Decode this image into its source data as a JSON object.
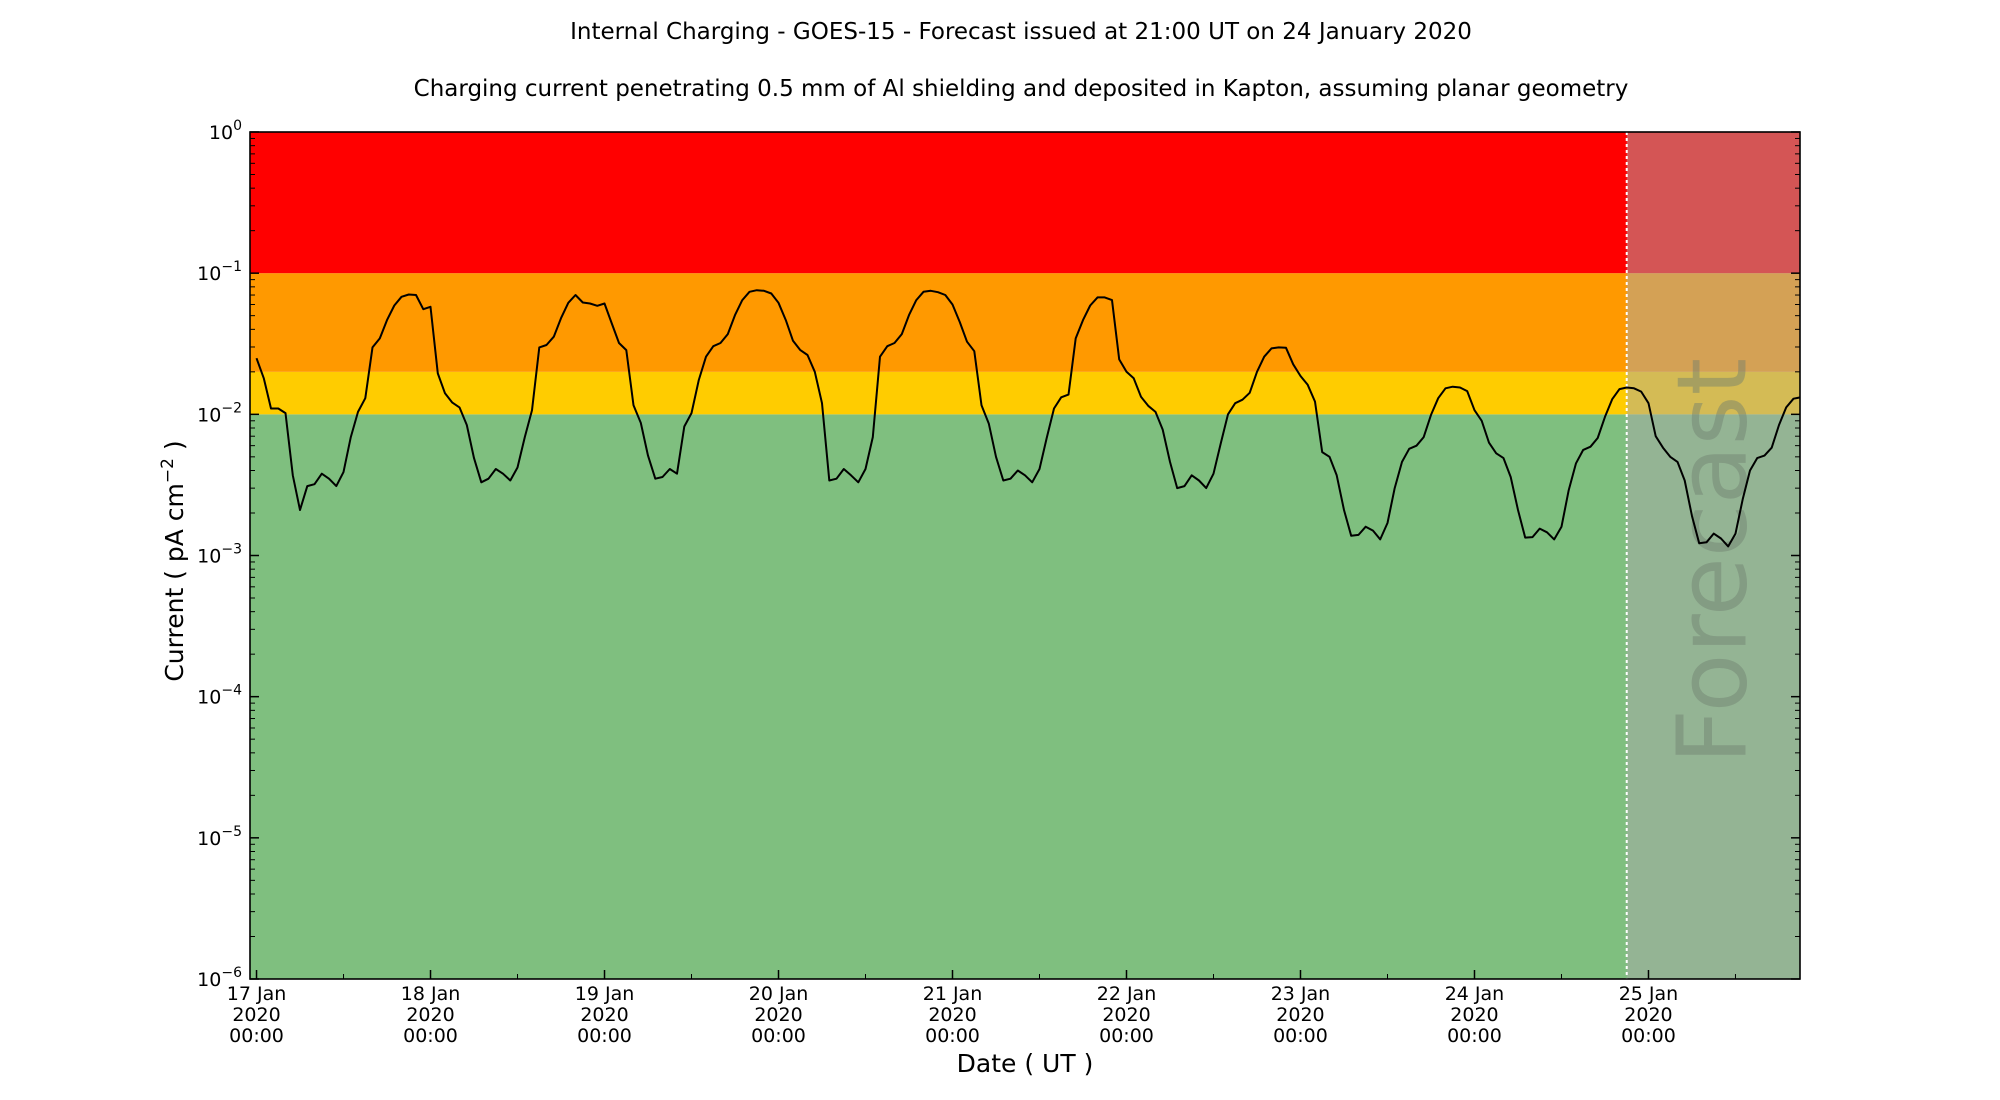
{
  "chart_data": {
    "type": "line",
    "title": "Internal Charging - GOES-15 - Forecast issued at 21:00 UT on 24 January 2020",
    "subtitle": "Charging current penetrating 0.5 mm of Al shielding and deposited in Kapton, assuming planar geometry",
    "xlabel": "Date ( UT )",
    "ylabel": "Current ( pA cm",
    "ylabel_exp": "−2",
    "ylabel_end": " )",
    "yscale": "log",
    "ylim": [
      1e-06,
      1
    ],
    "xlim_hours": [
      -0.9,
      212.9
    ],
    "x_start": "17 Jan 2020 00:00",
    "x_step_hours": 1,
    "forecast_start_hour": 189,
    "forecast_label": "Forecast",
    "grid": false,
    "bands": [
      {
        "name": "green",
        "from": 1e-06,
        "to": 0.01,
        "color": "#7fbf7f"
      },
      {
        "name": "yellow",
        "from": 0.01,
        "to": 0.02,
        "color": "#ffcc00"
      },
      {
        "name": "orange",
        "from": 0.02,
        "to": 0.1,
        "color": "#ff9900"
      },
      {
        "name": "red",
        "from": 0.1,
        "to": 1,
        "color": "#ff0000"
      }
    ],
    "y_ticks": [
      {
        "value": 1,
        "base": "10",
        "exp": "0"
      },
      {
        "value": 0.1,
        "base": "10",
        "exp": "−1"
      },
      {
        "value": 0.01,
        "base": "10",
        "exp": "−2"
      },
      {
        "value": 0.001,
        "base": "10",
        "exp": "−3"
      },
      {
        "value": 0.0001,
        "base": "10",
        "exp": "−4"
      },
      {
        "value": 1e-05,
        "base": "10",
        "exp": "−5"
      },
      {
        "value": 1e-06,
        "base": "10",
        "exp": "−6"
      }
    ],
    "x_ticks": [
      {
        "hour": 0,
        "lines": [
          "17 Jan",
          "2020",
          "00:00"
        ]
      },
      {
        "hour": 24,
        "lines": [
          "18 Jan",
          "2020",
          "00:00"
        ]
      },
      {
        "hour": 48,
        "lines": [
          "19 Jan",
          "2020",
          "00:00"
        ]
      },
      {
        "hour": 72,
        "lines": [
          "20 Jan",
          "2020",
          "00:00"
        ]
      },
      {
        "hour": 96,
        "lines": [
          "21 Jan",
          "2020",
          "00:00"
        ]
      },
      {
        "hour": 120,
        "lines": [
          "22 Jan",
          "2020",
          "00:00"
        ]
      },
      {
        "hour": 144,
        "lines": [
          "23 Jan",
          "2020",
          "00:00"
        ]
      },
      {
        "hour": 168,
        "lines": [
          "24 Jan",
          "2020",
          "00:00"
        ]
      },
      {
        "hour": 192,
        "lines": [
          "25 Jan",
          "2020",
          "00:00"
        ]
      }
    ],
    "series": [
      {
        "name": "Current",
        "color": "#000000",
        "values": [
          0.025,
          0.018,
          0.011,
          0.011,
          0.0102,
          0.0037,
          0.0021,
          0.0031,
          0.0032,
          0.0038,
          0.0035,
          0.0031,
          0.0039,
          0.0069,
          0.0104,
          0.013,
          0.0298,
          0.0345,
          0.0465,
          0.059,
          0.068,
          0.0706,
          0.07,
          0.0556,
          0.0578,
          0.0195,
          0.0141,
          0.0121,
          0.0112,
          0.0084,
          0.0049,
          0.0033,
          0.0035,
          0.0041,
          0.0038,
          0.0034,
          0.0042,
          0.0069,
          0.0107,
          0.0298,
          0.031,
          0.0355,
          0.048,
          0.0617,
          0.07,
          0.062,
          0.061,
          0.0587,
          0.061,
          0.044,
          0.032,
          0.0285,
          0.0116,
          0.0087,
          0.0051,
          0.0035,
          0.0036,
          0.0041,
          0.0038,
          0.0082,
          0.0102,
          0.0175,
          0.0256,
          0.0304,
          0.032,
          0.037,
          0.0505,
          0.0644,
          0.0738,
          0.0758,
          0.075,
          0.0718,
          0.0617,
          0.0465,
          0.0332,
          0.0285,
          0.0263,
          0.02,
          0.012,
          0.0034,
          0.0035,
          0.0041,
          0.0037,
          0.0033,
          0.0041,
          0.0069,
          0.0256,
          0.0304,
          0.032,
          0.037,
          0.0505,
          0.0644,
          0.0738,
          0.075,
          0.0733,
          0.07,
          0.06,
          0.045,
          0.0327,
          0.028,
          0.0116,
          0.0086,
          0.005,
          0.0034,
          0.0035,
          0.004,
          0.0037,
          0.0033,
          0.0041,
          0.0068,
          0.011,
          0.0132,
          0.0138,
          0.0345,
          0.0465,
          0.059,
          0.0673,
          0.0673,
          0.0644,
          0.0245,
          0.02,
          0.018,
          0.0133,
          0.0115,
          0.0104,
          0.0078,
          0.0046,
          0.003,
          0.0031,
          0.0037,
          0.0034,
          0.003,
          0.0038,
          0.0062,
          0.01,
          0.012,
          0.0127,
          0.0142,
          0.02,
          0.0256,
          0.0293,
          0.0298,
          0.0296,
          0.0226,
          0.0187,
          0.0162,
          0.0123,
          0.0054,
          0.005,
          0.0037,
          0.0021,
          0.00138,
          0.0014,
          0.0016,
          0.0015,
          0.0013,
          0.0017,
          0.003,
          0.0046,
          0.0057,
          0.006,
          0.0069,
          0.0099,
          0.013,
          0.0153,
          0.0157,
          0.0155,
          0.0146,
          0.0107,
          0.009,
          0.0063,
          0.0053,
          0.0049,
          0.0036,
          0.0021,
          0.00134,
          0.00135,
          0.00155,
          0.00146,
          0.0013,
          0.0016,
          0.0029,
          0.0045,
          0.0056,
          0.0059,
          0.0068,
          0.0096,
          0.0128,
          0.0151,
          0.0155,
          0.0153,
          0.0145,
          0.012,
          0.007,
          0.0058,
          0.005,
          0.0046,
          0.0034,
          0.0019,
          0.00122,
          0.00124,
          0.00143,
          0.00132,
          0.00116,
          0.00143,
          0.0025,
          0.004,
          0.0049,
          0.0051,
          0.0058,
          0.0084,
          0.0112,
          0.0129,
          0.0132
        ]
      }
    ]
  }
}
